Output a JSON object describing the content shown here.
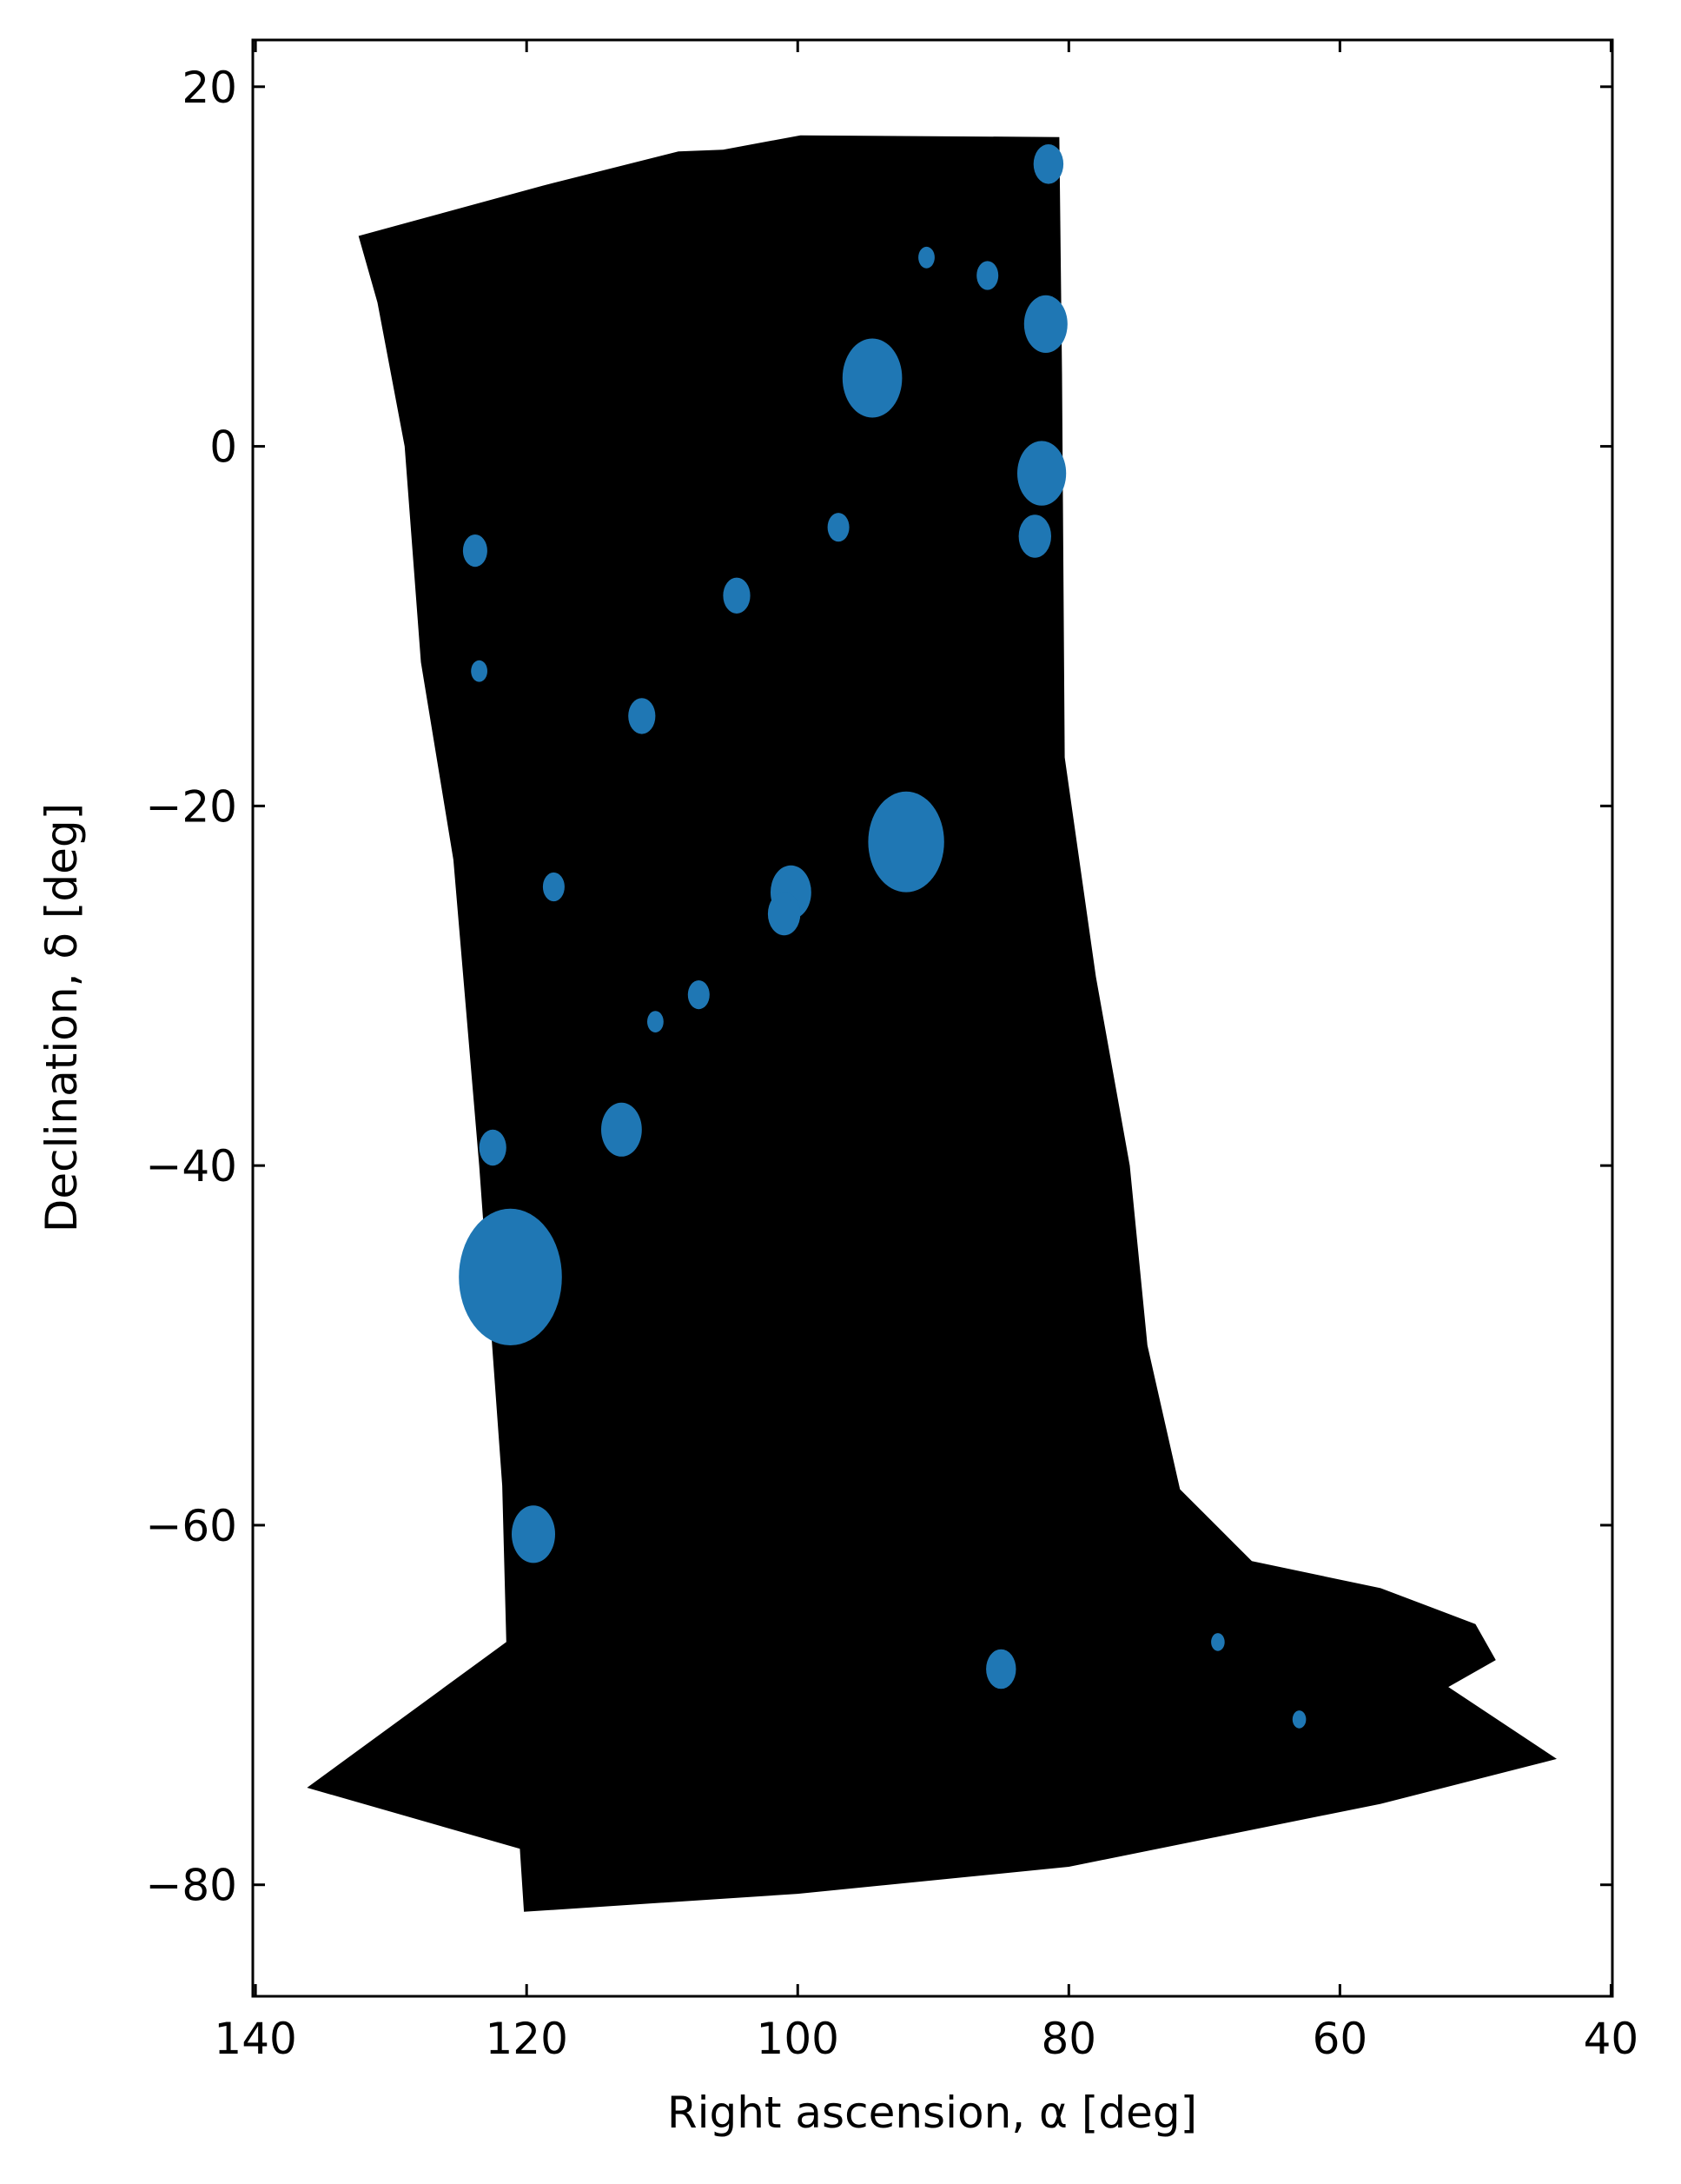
{
  "chart_data": {
    "type": "scatter",
    "title": "",
    "xlabel": "Right ascension, α [deg]",
    "ylabel": "Declination, δ [deg]",
    "xlim": [
      140.2,
      39.9
    ],
    "ylim": [
      -86.2,
      22.6
    ],
    "x_inverted": true,
    "x_ticks": [
      140,
      120,
      100,
      80,
      60,
      40
    ],
    "x_tick_labels": [
      "140",
      "120",
      "100",
      "80",
      "60",
      "40"
    ],
    "y_ticks": [
      20,
      0,
      -20,
      -40,
      -60,
      -80
    ],
    "y_tick_labels": [
      "20",
      "0",
      "−20",
      "−40",
      "−60",
      "−80"
    ],
    "tick_direction": "in",
    "ticks_on_all_sides": true,
    "grid": false,
    "legend": "none",
    "series": [
      {
        "kind": "all-sources",
        "color": "#000000",
        "footprint_outline_ra_dec": [
          [
            132.4,
            11.7
          ],
          [
            118.8,
            14.5
          ],
          [
            108.8,
            16.4
          ],
          [
            105.5,
            16.5
          ],
          [
            99.8,
            17.3
          ],
          [
            80.7,
            17.2
          ],
          [
            80.5,
            4.0
          ],
          [
            80.3,
            -17.3
          ],
          [
            78.0,
            -29.5
          ],
          [
            75.5,
            -40.0
          ],
          [
            74.2,
            -50.0
          ],
          [
            71.8,
            -58.0
          ],
          [
            66.5,
            -62.0
          ],
          [
            57.0,
            -63.5
          ],
          [
            50.0,
            -65.5
          ],
          [
            48.5,
            -67.5
          ],
          [
            52.0,
            -69.0
          ],
          [
            44.0,
            -73.0
          ],
          [
            57.0,
            -75.5
          ],
          [
            80.0,
            -79.0
          ],
          [
            100.0,
            -80.5
          ],
          [
            120.2,
            -81.5
          ],
          [
            120.5,
            -78.0
          ],
          [
            136.2,
            -74.6
          ],
          [
            121.5,
            -66.5
          ],
          [
            121.8,
            -57.8
          ],
          [
            123.5,
            -40.0
          ],
          [
            125.4,
            -23.0
          ],
          [
            127.8,
            -12.0
          ],
          [
            129.0,
            0.0
          ],
          [
            131.0,
            8.0
          ]
        ]
      },
      {
        "kind": "masked-sources",
        "color": "#1f77b4",
        "bright_star_masks_ra_dec_radius": [
          [
            94.5,
            3.8,
            2.2
          ],
          [
            92.0,
            -22.0,
            2.8
          ],
          [
            121.2,
            -46.2,
            3.8
          ],
          [
            119.5,
            -60.5,
            1.6
          ],
          [
            81.7,
            6.8,
            1.6
          ],
          [
            81.5,
            15.7,
            1.1
          ],
          [
            113.0,
            -38.0,
            1.5
          ],
          [
            123.8,
            -5.8,
            0.9
          ],
          [
            104.5,
            -8.3,
            1.0
          ],
          [
            100.5,
            -24.8,
            1.5
          ],
          [
            101.0,
            -26.0,
            1.2
          ],
          [
            122.5,
            -39.0,
            1.0
          ],
          [
            85.0,
            -68.0,
            1.1
          ],
          [
            111.5,
            -15.0,
            1.0
          ],
          [
            118.0,
            -24.5,
            0.8
          ],
          [
            82.0,
            -1.5,
            1.8
          ],
          [
            82.5,
            -5.0,
            1.2
          ],
          [
            97.0,
            -4.5,
            0.8
          ],
          [
            107.3,
            -30.5,
            0.8
          ],
          [
            90.5,
            10.5,
            0.6
          ],
          [
            86.0,
            9.5,
            0.8
          ],
          [
            123.5,
            -12.5,
            0.6
          ],
          [
            110.5,
            -32.0,
            0.6
          ],
          [
            63.0,
            -70.8,
            0.5
          ],
          [
            69.0,
            -66.5,
            0.5
          ]
        ]
      }
    ]
  }
}
